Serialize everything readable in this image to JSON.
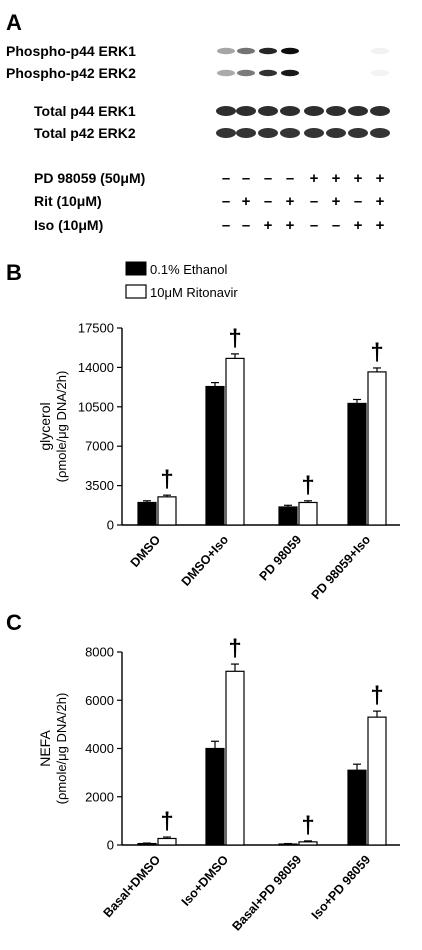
{
  "panel_a": {
    "label": "A",
    "blot_labels": [
      "Phospho-p44 ERK1",
      "Phospho-p42 ERK2",
      "Total p44 ERK1",
      "Total p42 ERK2"
    ],
    "treatment_rows": [
      {
        "label": "PD 98059 (50μM)",
        "signs": [
          "–",
          "–",
          "–",
          "–",
          "+",
          "+",
          "+",
          "+"
        ]
      },
      {
        "label": "Rit (10μM)",
        "signs": [
          "–",
          "+",
          "–",
          "+",
          "–",
          "+",
          "–",
          "+"
        ]
      },
      {
        "label": "Iso (10μM)",
        "signs": [
          "–",
          "–",
          "+",
          "+",
          "–",
          "–",
          "+",
          "+"
        ]
      }
    ],
    "phospho_intensity": [
      0.35,
      0.55,
      0.85,
      0.95,
      0.02,
      0.02,
      0.03,
      0.05
    ]
  },
  "chart_data": [
    {
      "panel": "B",
      "type": "bar",
      "legend": [
        "0.1% Ethanol",
        "10μM Ritonavir"
      ],
      "ylabel_line1": "glycerol",
      "ylabel_line2": "(ρmole/μg DNA/2h)",
      "categories": [
        "DMSO",
        "DMSO+Iso",
        "PD 98059",
        "PD 98059+Iso"
      ],
      "ylim": [
        0,
        17500
      ],
      "yticks": [
        0,
        3500,
        7000,
        10500,
        14000,
        17500
      ],
      "series": [
        {
          "name": "0.1% Ethanol",
          "values": [
            2000,
            12300,
            1600,
            10800
          ],
          "errors": [
            150,
            350,
            150,
            350
          ]
        },
        {
          "name": "10μM Ritonavir",
          "values": [
            2500,
            14800,
            2000,
            13600
          ],
          "errors": [
            150,
            400,
            150,
            350
          ]
        }
      ],
      "significance_marker": "†"
    },
    {
      "panel": "C",
      "type": "bar",
      "ylabel_line1": "NEFA",
      "ylabel_line2": "(ρmole/μg DNA/2h)",
      "categories": [
        "Basal+DMSO",
        "Iso+DMSO",
        "Basal+PD 98059",
        "Iso+PD 98059"
      ],
      "ylim": [
        0,
        8000
      ],
      "yticks": [
        0,
        2000,
        4000,
        6000,
        8000
      ],
      "series": [
        {
          "name": "0.1% Ethanol",
          "values": [
            60,
            4000,
            40,
            3100
          ],
          "errors": [
            20,
            300,
            20,
            250
          ]
        },
        {
          "name": "10μM Ritonavir",
          "values": [
            270,
            7200,
            130,
            5300
          ],
          "errors": [
            60,
            300,
            40,
            250
          ]
        }
      ],
      "significance_marker": "†"
    }
  ],
  "panel_b_label": "B",
  "panel_c_label": "C",
  "colors": {
    "filled": "#000000",
    "open": "#ffffff",
    "stroke": "#000000"
  }
}
